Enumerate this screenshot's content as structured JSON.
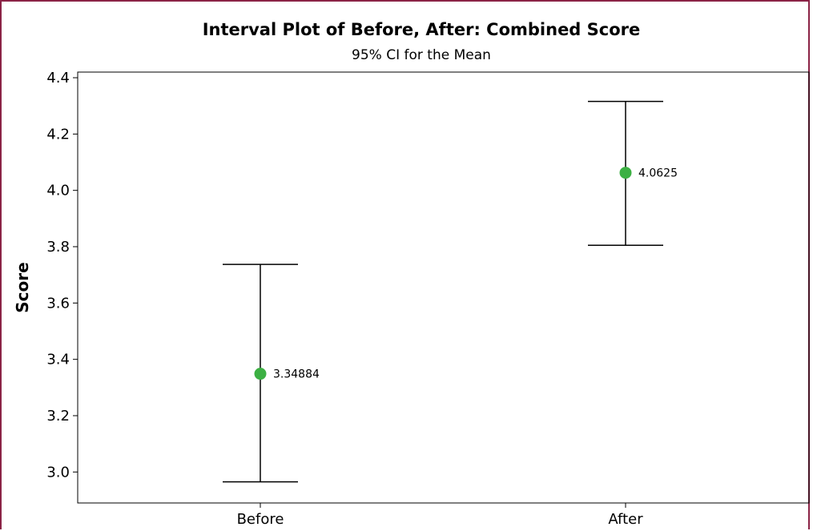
{
  "chart_data": {
    "type": "interval",
    "title": "Interval Plot of Before, After: Combined Score",
    "subtitle": "95% CI for the Mean",
    "xlabel": "",
    "ylabel": "Score",
    "ylim": [
      2.89,
      4.42
    ],
    "yticks": [
      "3.0",
      "3.2",
      "3.4",
      "3.6",
      "3.8",
      "4.0",
      "4.2",
      "4.4"
    ],
    "ytick_values": [
      3.0,
      3.2,
      3.4,
      3.6,
      3.8,
      4.0,
      4.2,
      4.4
    ],
    "categories": [
      "Before",
      "After"
    ],
    "means": [
      3.34884,
      4.0625
    ],
    "mean_labels": [
      "3.34884",
      "4.0625"
    ],
    "ci_lower": [
      2.965,
      3.805
    ],
    "ci_upper": [
      3.737,
      4.316
    ],
    "grid": false,
    "legend": "none",
    "colors": {
      "point": "#3cb043",
      "line": "#000000",
      "frame_border": "#8b2346"
    }
  }
}
